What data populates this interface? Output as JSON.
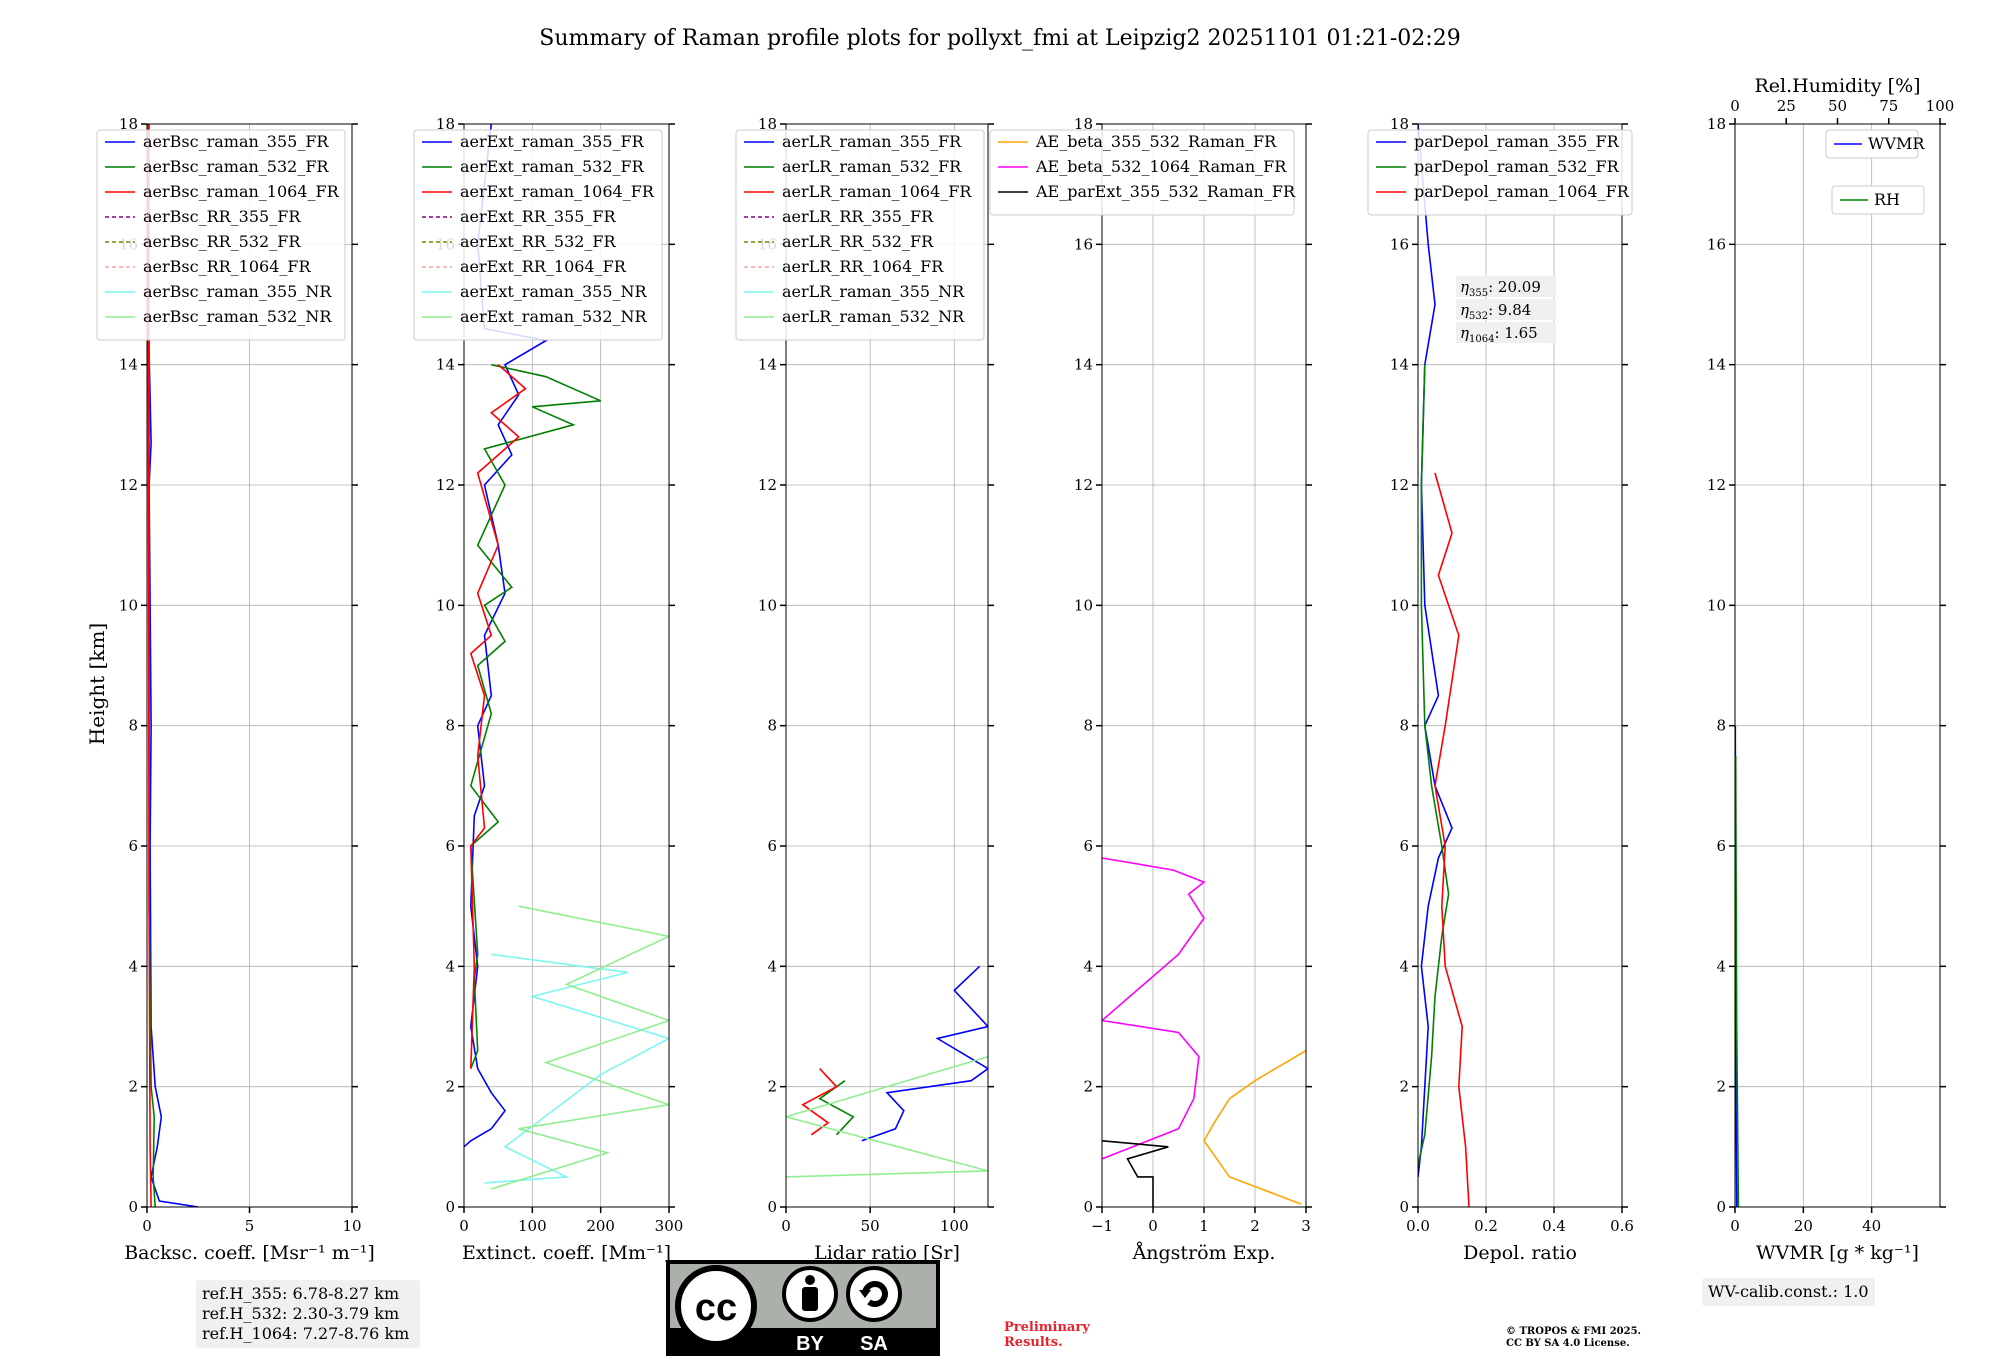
{
  "title": "Summary of Raman profile plots for pollyxt_fmi at Leipzig2 20251101 01:21-02:29",
  "ylabel": "Height [km]",
  "yticks": [
    "0",
    "2",
    "4",
    "6",
    "8",
    "10",
    "12",
    "14",
    "16",
    "18"
  ],
  "ref_box": [
    "ref.H_355: 6.78-8.27 km",
    "ref.H_532: 2.30-3.79 km",
    "ref.H_1064: 7.27-8.76 km"
  ],
  "wv_calib": "WV-calib.const.: 1.0",
  "preliminary": [
    "Preliminary",
    "Results."
  ],
  "copyright": [
    "© TROPOS & FMI 2025.",
    "CC BY SA 4.0 License."
  ],
  "license_badge": {
    "by": "BY",
    "sa": "SA"
  },
  "colors": {
    "blue": "#0000ff",
    "green": "#008000",
    "red": "#ff0000",
    "purple": "#800080",
    "olive": "#808000",
    "salmon": "#f4a6a0",
    "cyan": "#7ff5f0",
    "lightgreen": "#90ee90",
    "orange": "#ffa500",
    "magenta": "#ff00ff",
    "black": "#000000"
  },
  "chart_data": [
    {
      "type": "line",
      "xlabel": "Backsc. coeff. [Msr⁻¹ m⁻¹]",
      "xlim": [
        0,
        10
      ],
      "ylim": [
        0,
        18
      ],
      "xticks": [
        "0",
        "5",
        "10"
      ],
      "legend": [
        "aerBsc_raman_355_FR",
        "aerBsc_raman_532_FR",
        "aerBsc_raman_1064_FR",
        "aerBsc_RR_355_FR",
        "aerBsc_RR_532_FR",
        "aerBsc_RR_1064_FR",
        "aerBsc_raman_355_NR",
        "aerBsc_raman_532_NR"
      ],
      "series": [
        {
          "name": "aerBsc_raman_355_FR",
          "color": "blue",
          "points": [
            [
              2.5,
              0
            ],
            [
              0.6,
              0.1
            ],
            [
              0.2,
              0.5
            ],
            [
              0.5,
              1.0
            ],
            [
              0.7,
              1.5
            ],
            [
              0.4,
              2.0
            ],
            [
              0.2,
              3
            ],
            [
              0.15,
              6
            ],
            [
              0.2,
              8
            ],
            [
              0.1,
              12
            ],
            [
              0.2,
              12.7
            ],
            [
              0.05,
              15
            ],
            [
              0.05,
              18
            ]
          ]
        },
        {
          "name": "aerBsc_raman_532_FR",
          "color": "green",
          "points": [
            [
              0.4,
              0
            ],
            [
              0.3,
              0.5
            ],
            [
              0.35,
              1.5
            ],
            [
              0.2,
              2
            ],
            [
              0.1,
              5
            ],
            [
              0.1,
              18
            ]
          ]
        },
        {
          "name": "aerBsc_raman_1064_FR",
          "color": "red",
          "points": [
            [
              0.2,
              0
            ],
            [
              0.15,
              1
            ],
            [
              0.1,
              5
            ],
            [
              0.05,
              18
            ]
          ]
        }
      ]
    },
    {
      "type": "line",
      "xlabel": "Extinct. coeff. [Mm⁻¹]",
      "xlim": [
        0,
        300
      ],
      "ylim": [
        0,
        18
      ],
      "xticks": [
        "0",
        "100",
        "200",
        "300"
      ],
      "legend": [
        "aerExt_raman_355_FR",
        "aerExt_raman_532_FR",
        "aerExt_raman_1064_FR",
        "aerExt_RR_355_FR",
        "aerExt_RR_532_FR",
        "aerExt_RR_1064_FR",
        "aerExt_raman_355_NR",
        "aerExt_raman_532_NR"
      ],
      "series": [
        {
          "name": "aerExt_raman_355_FR",
          "color": "blue",
          "points": [
            [
              0,
              1.0
            ],
            [
              10,
              1.1
            ],
            [
              40,
              1.3
            ],
            [
              60,
              1.6
            ],
            [
              40,
              1.9
            ],
            [
              20,
              2.3
            ],
            [
              10,
              3
            ],
            [
              20,
              4
            ],
            [
              10,
              5
            ],
            [
              15,
              6.5
            ],
            [
              30,
              7
            ],
            [
              20,
              8
            ],
            [
              40,
              8.5
            ],
            [
              30,
              9.5
            ],
            [
              60,
              10.2
            ],
            [
              50,
              11
            ],
            [
              30,
              12
            ],
            [
              70,
              12.5
            ],
            [
              50,
              13
            ],
            [
              80,
              13.5
            ],
            [
              60,
              14
            ],
            [
              120,
              14.4
            ],
            [
              30,
              14.6
            ],
            [
              20,
              16
            ],
            [
              40,
              18
            ]
          ]
        },
        {
          "name": "aerExt_raman_532_FR",
          "color": "green",
          "points": [
            [
              10,
              2.3
            ],
            [
              20,
              2.6
            ],
            [
              15,
              3.8
            ],
            [
              20,
              4.2
            ],
            [
              10,
              6
            ],
            [
              50,
              6.4
            ],
            [
              10,
              7
            ],
            [
              40,
              8.2
            ],
            [
              20,
              9
            ],
            [
              60,
              9.4
            ],
            [
              30,
              10
            ],
            [
              70,
              10.3
            ],
            [
              20,
              11
            ],
            [
              60,
              12
            ],
            [
              30,
              12.6
            ],
            [
              160,
              13
            ],
            [
              100,
              13.3
            ],
            [
              200,
              13.4
            ],
            [
              120,
              13.8
            ],
            [
              40,
              14
            ]
          ]
        },
        {
          "name": "aerExt_raman_1064_FR",
          "color": "red",
          "points": [
            [
              10,
              2.3
            ],
            [
              15,
              4
            ],
            [
              10,
              6
            ],
            [
              30,
              6.3
            ],
            [
              20,
              7.5
            ],
            [
              30,
              8.5
            ],
            [
              10,
              9.2
            ],
            [
              40,
              9.5
            ],
            [
              20,
              10.2
            ],
            [
              50,
              11
            ],
            [
              20,
              12.2
            ],
            [
              80,
              12.8
            ],
            [
              40,
              13.2
            ],
            [
              90,
              13.6
            ],
            [
              50,
              14
            ]
          ]
        },
        {
          "name": "aerExt_raman_355_NR",
          "color": "cyan",
          "points": [
            [
              30,
              0.4
            ],
            [
              150,
              0.5
            ],
            [
              60,
              1.0
            ],
            [
              200,
              2.2
            ],
            [
              300,
              2.8
            ],
            [
              100,
              3.5
            ],
            [
              240,
              3.9
            ],
            [
              40,
              4.2
            ]
          ]
        },
        {
          "name": "aerExt_raman_532_NR",
          "color": "lightgreen",
          "points": [
            [
              40,
              0.3
            ],
            [
              210,
              0.9
            ],
            [
              80,
              1.3
            ],
            [
              300,
              1.7
            ],
            [
              120,
              2.4
            ],
            [
              300,
              3.1
            ],
            [
              150,
              3.7
            ],
            [
              300,
              4.5
            ],
            [
              80,
              5.0
            ]
          ]
        }
      ]
    },
    {
      "type": "line",
      "xlabel": "Lidar ratio [Sr]",
      "xlim": [
        0,
        120
      ],
      "ylim": [
        0,
        18
      ],
      "xticks": [
        "0",
        "50",
        "100"
      ],
      "legend": [
        "aerLR_raman_355_FR",
        "aerLR_raman_532_FR",
        "aerLR_raman_1064_FR",
        "aerLR_RR_355_FR",
        "aerLR_RR_532_FR",
        "aerLR_RR_1064_FR",
        "aerLR_raman_355_NR",
        "aerLR_raman_532_NR"
      ],
      "series": [
        {
          "name": "aerLR_raman_355_FR",
          "color": "blue",
          "points": [
            [
              45,
              1.1
            ],
            [
              65,
              1.3
            ],
            [
              70,
              1.6
            ],
            [
              60,
              1.9
            ],
            [
              110,
              2.1
            ],
            [
              120,
              2.3
            ],
            [
              90,
              2.8
            ],
            [
              120,
              3.0
            ],
            [
              100,
              3.6
            ],
            [
              115,
              4.0
            ]
          ]
        },
        {
          "name": "aerLR_raman_532_FR",
          "color": "green",
          "points": [
            [
              30,
              1.2
            ],
            [
              40,
              1.5
            ],
            [
              20,
              1.8
            ],
            [
              35,
              2.1
            ]
          ]
        },
        {
          "name": "aerLR_raman_1064_FR",
          "color": "red",
          "points": [
            [
              15,
              1.2
            ],
            [
              25,
              1.4
            ],
            [
              10,
              1.7
            ],
            [
              30,
              2.0
            ],
            [
              20,
              2.3
            ]
          ]
        },
        {
          "name": "aerLR_raman_532_NR",
          "color": "lightgreen",
          "points": [
            [
              0,
              0.5
            ],
            [
              120,
              0.6
            ],
            [
              0,
              1.5
            ],
            [
              120,
              2.5
            ]
          ]
        }
      ]
    },
    {
      "type": "line",
      "xlabel": "Ångström Exp.",
      "xlim": [
        -1,
        3
      ],
      "ylim": [
        0,
        18
      ],
      "xticks": [
        "−1",
        "0",
        "1",
        "2",
        "3"
      ],
      "legend": [
        "AE_beta_355_532_Raman_FR",
        "AE_beta_532_1064_Raman_FR",
        "AE_parExt_355_532_Raman_FR"
      ],
      "series": [
        {
          "name": "AE_beta_355_532_Raman_FR",
          "color": "orange",
          "points": [
            [
              2.9,
              0.05
            ],
            [
              1.5,
              0.5
            ],
            [
              1.0,
              1.1
            ],
            [
              1.2,
              1.4
            ],
            [
              1.5,
              1.8
            ],
            [
              2.0,
              2.1
            ],
            [
              3.0,
              2.6
            ]
          ]
        },
        {
          "name": "AE_beta_532_1064_Raman_FR",
          "color": "magenta",
          "points": [
            [
              -1,
              0.8
            ],
            [
              0.5,
              1.3
            ],
            [
              0.8,
              1.8
            ],
            [
              0.9,
              2.5
            ],
            [
              0.5,
              2.9
            ],
            [
              -1,
              3.1
            ],
            [
              0.5,
              4.2
            ],
            [
              1.0,
              4.8
            ],
            [
              0.7,
              5.2
            ],
            [
              1.0,
              5.4
            ],
            [
              0.4,
              5.6
            ],
            [
              -1,
              5.8
            ]
          ]
        },
        {
          "name": "AE_parExt_355_532_Raman_FR",
          "color": "black",
          "points": [
            [
              0,
              0
            ],
            [
              0,
              0.5
            ],
            [
              -0.3,
              0.5
            ],
            [
              -0.5,
              0.8
            ],
            [
              0.3,
              1.0
            ],
            [
              -1,
              1.1
            ]
          ]
        }
      ]
    },
    {
      "type": "line",
      "xlabel": "Depol. ratio",
      "xlim": [
        0,
        0.6
      ],
      "ylim": [
        0,
        18
      ],
      "xticks": [
        "0.0",
        "0.2",
        "0.4",
        "0.6"
      ],
      "legend": [
        "parDepol_raman_355_FR",
        "parDepol_raman_532_FR",
        "parDepol_raman_1064_FR"
      ],
      "annotations": [
        {
          "base": "η",
          "sub": "355",
          "value": ": 20.09"
        },
        {
          "base": "η",
          "sub": "532",
          "value": ": 9.84"
        },
        {
          "base": "η",
          "sub": "1064",
          "value": ": 1.65"
        }
      ],
      "series": [
        {
          "name": "parDepol_raman_355_FR",
          "color": "blue",
          "points": [
            [
              0.0,
              0.5
            ],
            [
              0.01,
              1.0
            ],
            [
              0.02,
              2.0
            ],
            [
              0.03,
              3.0
            ],
            [
              0.01,
              4.0
            ],
            [
              0.03,
              5.0
            ],
            [
              0.06,
              5.8
            ],
            [
              0.1,
              6.3
            ],
            [
              0.05,
              7.0
            ],
            [
              0.02,
              8.0
            ],
            [
              0.06,
              8.5
            ],
            [
              0.02,
              10
            ],
            [
              0.01,
              12
            ],
            [
              0.02,
              14
            ],
            [
              0.05,
              15
            ],
            [
              0.03,
              16
            ],
            [
              0.0,
              18
            ]
          ]
        },
        {
          "name": "parDepol_raman_532_FR",
          "color": "green",
          "points": [
            [
              0.0,
              0.7
            ],
            [
              0.02,
              1.2
            ],
            [
              0.04,
              2.5
            ],
            [
              0.05,
              3.5
            ],
            [
              0.07,
              4.5
            ],
            [
              0.09,
              5.2
            ],
            [
              0.07,
              6.0
            ],
            [
              0.04,
              7.0
            ],
            [
              0.02,
              8.0
            ],
            [
              0.01,
              10
            ],
            [
              0.01,
              12
            ],
            [
              0.02,
              14
            ]
          ]
        },
        {
          "name": "parDepol_raman_1064_FR",
          "color": "red",
          "points": [
            [
              0.15,
              0
            ],
            [
              0.14,
              1.0
            ],
            [
              0.12,
              2.0
            ],
            [
              0.13,
              3.0
            ],
            [
              0.08,
              4.0
            ],
            [
              0.07,
              5.0
            ],
            [
              0.08,
              6.0
            ],
            [
              0.05,
              7.0
            ],
            [
              0.08,
              8.0
            ],
            [
              0.12,
              9.5
            ],
            [
              0.06,
              10.5
            ],
            [
              0.1,
              11.2
            ],
            [
              0.05,
              12.2
            ]
          ]
        }
      ]
    },
    {
      "type": "line",
      "xlabel": "WVMR [g * kg⁻¹]",
      "xlim": [
        0,
        60
      ],
      "ylim": [
        0,
        18
      ],
      "xticks": [
        "0",
        "20",
        "40"
      ],
      "top_label": "Rel.Humidity [%]",
      "top_xticks": [
        "0",
        "25",
        "50",
        "75",
        "100"
      ],
      "legend": [
        "WVMR",
        "RH"
      ],
      "series": [
        {
          "name": "WVMR",
          "color": "blue",
          "points": [
            [
              0.5,
              0
            ],
            [
              0.3,
              2
            ],
            [
              0.2,
              5
            ],
            [
              0.1,
              8
            ]
          ]
        },
        {
          "name": "RH",
          "color": "green",
          "points": [
            [
              1,
              0
            ],
            [
              0.5,
              3
            ],
            [
              0.3,
              6
            ],
            [
              0.2,
              7.5
            ]
          ]
        }
      ]
    }
  ]
}
